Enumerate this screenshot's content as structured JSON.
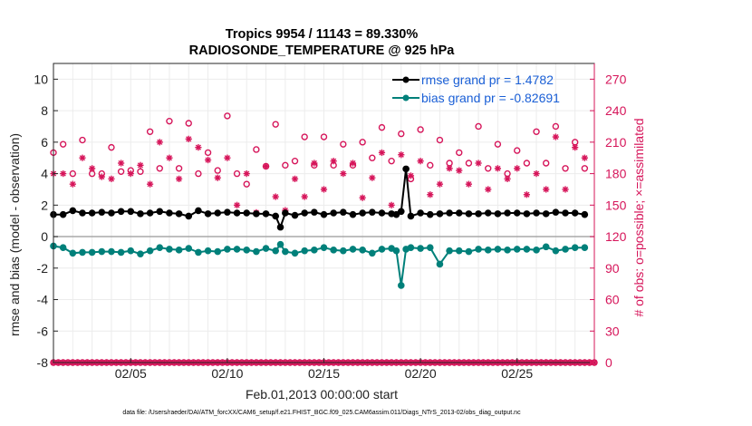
{
  "chart_data": {
    "type": "line",
    "title_line1": "Tropics 9954 / 11143 = 89.330%",
    "title_line2": "RADIOSONDE_TEMPERATURE @ 925 hPa",
    "xlabel": "Feb.01,2013 00:00:00 start",
    "ylabel": "rmse and bias (model - observation)",
    "ylabel_right": "# of obs: o=possible; ×=assimilated",
    "footnote": "data file: /Users/raeder/DAI/ATM_forcXX/CAM6_setup/f.e21.FHIST_BGC.f09_025.CAM6assim.011/Diags_NTrS_2013-02/obs_diag_output.nc",
    "xlim": [
      1,
      29
    ],
    "ylim": [
      -8,
      11
    ],
    "ylim_right": [
      0,
      285
    ],
    "x_ticks": [
      5,
      10,
      15,
      20,
      25
    ],
    "x_tick_labels": [
      "02/05",
      "02/10",
      "02/15",
      "02/20",
      "02/25"
    ],
    "y_ticks": [
      -8,
      -6,
      -4,
      -2,
      0,
      2,
      4,
      6,
      8,
      10
    ],
    "y_tick_labels": [
      "-8",
      "-6",
      "-4",
      "-2",
      "0",
      "2",
      "4",
      "6",
      "8",
      "10"
    ],
    "y_right_ticks": [
      0,
      30,
      60,
      90,
      120,
      150,
      180,
      210,
      240,
      270
    ],
    "y_right_tick_labels": [
      "0",
      "30",
      "60",
      "90",
      "120",
      "150",
      "180",
      "210",
      "240",
      "270"
    ],
    "colors": {
      "rmse": "#000000",
      "bias": "#00807a",
      "obs": "#d6155a",
      "legend_text": "#1a5fd6"
    },
    "series": [
      {
        "name": "rmse grand pr = 1.4782",
        "axis": "left",
        "x": [
          1.0,
          1.5,
          2.0,
          2.5,
          3.0,
          3.5,
          4.0,
          4.5,
          5.0,
          5.5,
          6.0,
          6.5,
          7.0,
          7.5,
          8.0,
          8.5,
          9.0,
          9.5,
          10.0,
          10.5,
          11.0,
          11.5,
          12.0,
          12.5,
          12.75,
          13.0,
          13.5,
          14.0,
          14.5,
          15.0,
          15.5,
          16.0,
          16.5,
          17.0,
          17.5,
          18.0,
          18.5,
          18.75,
          19.0,
          19.25,
          19.5,
          20.0,
          20.5,
          21.0,
          21.5,
          22.0,
          22.5,
          23.0,
          23.5,
          24.0,
          24.5,
          25.0,
          25.5,
          26.0,
          26.5,
          27.0,
          27.5,
          28.0,
          28.5
        ],
        "values": [
          1.4,
          1.4,
          1.65,
          1.5,
          1.5,
          1.55,
          1.5,
          1.6,
          1.6,
          1.45,
          1.5,
          1.6,
          1.5,
          1.45,
          1.3,
          1.65,
          1.45,
          1.5,
          1.55,
          1.5,
          1.5,
          1.45,
          1.45,
          1.3,
          0.6,
          1.5,
          1.35,
          1.5,
          1.55,
          1.4,
          1.5,
          1.55,
          1.4,
          1.5,
          1.55,
          1.5,
          1.45,
          1.4,
          1.6,
          4.3,
          1.3,
          1.5,
          1.4,
          1.45,
          1.5,
          1.5,
          1.45,
          1.45,
          1.5,
          1.45,
          1.5,
          1.5,
          1.45,
          1.5,
          1.45,
          1.55,
          1.5,
          1.5,
          1.4
        ]
      },
      {
        "name": "bias grand pr = -0.82691",
        "axis": "left",
        "x": [
          1.0,
          1.5,
          2.0,
          2.5,
          3.0,
          3.5,
          4.0,
          4.5,
          5.0,
          5.5,
          6.0,
          6.5,
          7.0,
          7.5,
          8.0,
          8.5,
          9.0,
          9.5,
          10.0,
          10.5,
          11.0,
          11.5,
          12.0,
          12.5,
          12.75,
          13.0,
          13.5,
          14.0,
          14.5,
          15.0,
          15.5,
          16.0,
          16.5,
          17.0,
          17.5,
          18.0,
          18.5,
          18.75,
          19.0,
          19.25,
          19.5,
          20.0,
          20.5,
          21.0,
          21.5,
          22.0,
          22.5,
          23.0,
          23.5,
          24.0,
          24.5,
          25.0,
          25.5,
          26.0,
          26.5,
          27.0,
          27.5,
          28.0,
          28.5
        ],
        "values": [
          -0.6,
          -0.7,
          -1.05,
          -1.0,
          -1.0,
          -0.95,
          -0.95,
          -1.0,
          -0.9,
          -1.1,
          -0.9,
          -0.7,
          -0.8,
          -0.85,
          -0.75,
          -1.0,
          -0.9,
          -0.95,
          -0.8,
          -0.8,
          -0.85,
          -0.95,
          -0.75,
          -0.9,
          -0.5,
          -0.95,
          -1.05,
          -0.9,
          -0.85,
          -0.7,
          -0.85,
          -0.9,
          -0.8,
          -0.85,
          -1.05,
          -0.8,
          -0.75,
          -0.9,
          -3.1,
          -0.8,
          -0.7,
          -0.75,
          -0.7,
          -1.75,
          -0.9,
          -0.9,
          -0.95,
          -0.8,
          -0.85,
          -0.8,
          -0.85,
          -0.8,
          -0.8,
          -0.85,
          -0.65,
          -0.9,
          -0.8,
          -0.7,
          -0.7
        ]
      },
      {
        "name": "# of obs possible",
        "axis": "right",
        "marker": "o",
        "x": [
          1.0,
          1.5,
          2.0,
          2.5,
          3.0,
          3.5,
          4.0,
          4.5,
          5.0,
          5.5,
          6.0,
          6.5,
          7.0,
          7.5,
          8.0,
          8.5,
          9.0,
          9.5,
          10.0,
          10.5,
          11.0,
          11.5,
          12.0,
          12.5,
          13.0,
          13.5,
          14.0,
          14.5,
          15.0,
          15.5,
          16.0,
          16.5,
          17.0,
          17.5,
          18.0,
          18.5,
          19.0,
          19.5,
          20.0,
          20.5,
          21.0,
          21.5,
          22.0,
          22.5,
          23.0,
          23.5,
          24.0,
          24.5,
          25.0,
          25.5,
          26.0,
          26.5,
          27.0,
          27.5,
          28.0,
          28.5
        ],
        "values": [
          200,
          208,
          180,
          212,
          180,
          180,
          205,
          182,
          183,
          182,
          220,
          185,
          230,
          185,
          228,
          180,
          200,
          183,
          235,
          180,
          170,
          203,
          187,
          227,
          188,
          192,
          215,
          188,
          215,
          188,
          208,
          188,
          210,
          195,
          224,
          192,
          218,
          175,
          222,
          188,
          212,
          190,
          200,
          190,
          225,
          185,
          208,
          180,
          202,
          190,
          220,
          190,
          225,
          185,
          210,
          185
        ]
      },
      {
        "name": "# of obs assimilated",
        "axis": "right",
        "marker": "*",
        "x": [
          1.0,
          1.5,
          2.0,
          2.5,
          3.0,
          3.5,
          4.0,
          4.5,
          5.0,
          5.5,
          6.0,
          6.5,
          7.0,
          7.5,
          8.0,
          8.5,
          9.0,
          9.5,
          10.0,
          10.5,
          11.0,
          11.5,
          12.0,
          12.5,
          13.0,
          13.5,
          14.0,
          14.5,
          15.0,
          15.5,
          16.0,
          16.5,
          17.0,
          17.5,
          18.0,
          18.5,
          19.0,
          19.5,
          20.0,
          20.5,
          21.0,
          21.5,
          22.0,
          22.5,
          23.0,
          23.5,
          24.0,
          24.5,
          25.0,
          25.5,
          26.0,
          26.5,
          27.0,
          27.5,
          28.0,
          28.5
        ],
        "values": [
          180,
          180,
          170,
          195,
          185,
          177,
          175,
          190,
          180,
          188,
          170,
          210,
          195,
          175,
          213,
          205,
          193,
          176,
          195,
          150,
          180,
          143,
          187,
          158,
          145,
          175,
          158,
          190,
          165,
          192,
          180,
          190,
          157,
          176,
          200,
          150,
          198,
          178,
          192,
          160,
          170,
          185,
          183,
          170,
          190,
          165,
          185,
          175,
          185,
          160,
          180,
          165,
          215,
          165,
          205,
          195
        ]
      }
    ],
    "legend": [
      "rmse grand pr = 1.4782",
      "bias grand pr = -0.82691"
    ]
  }
}
